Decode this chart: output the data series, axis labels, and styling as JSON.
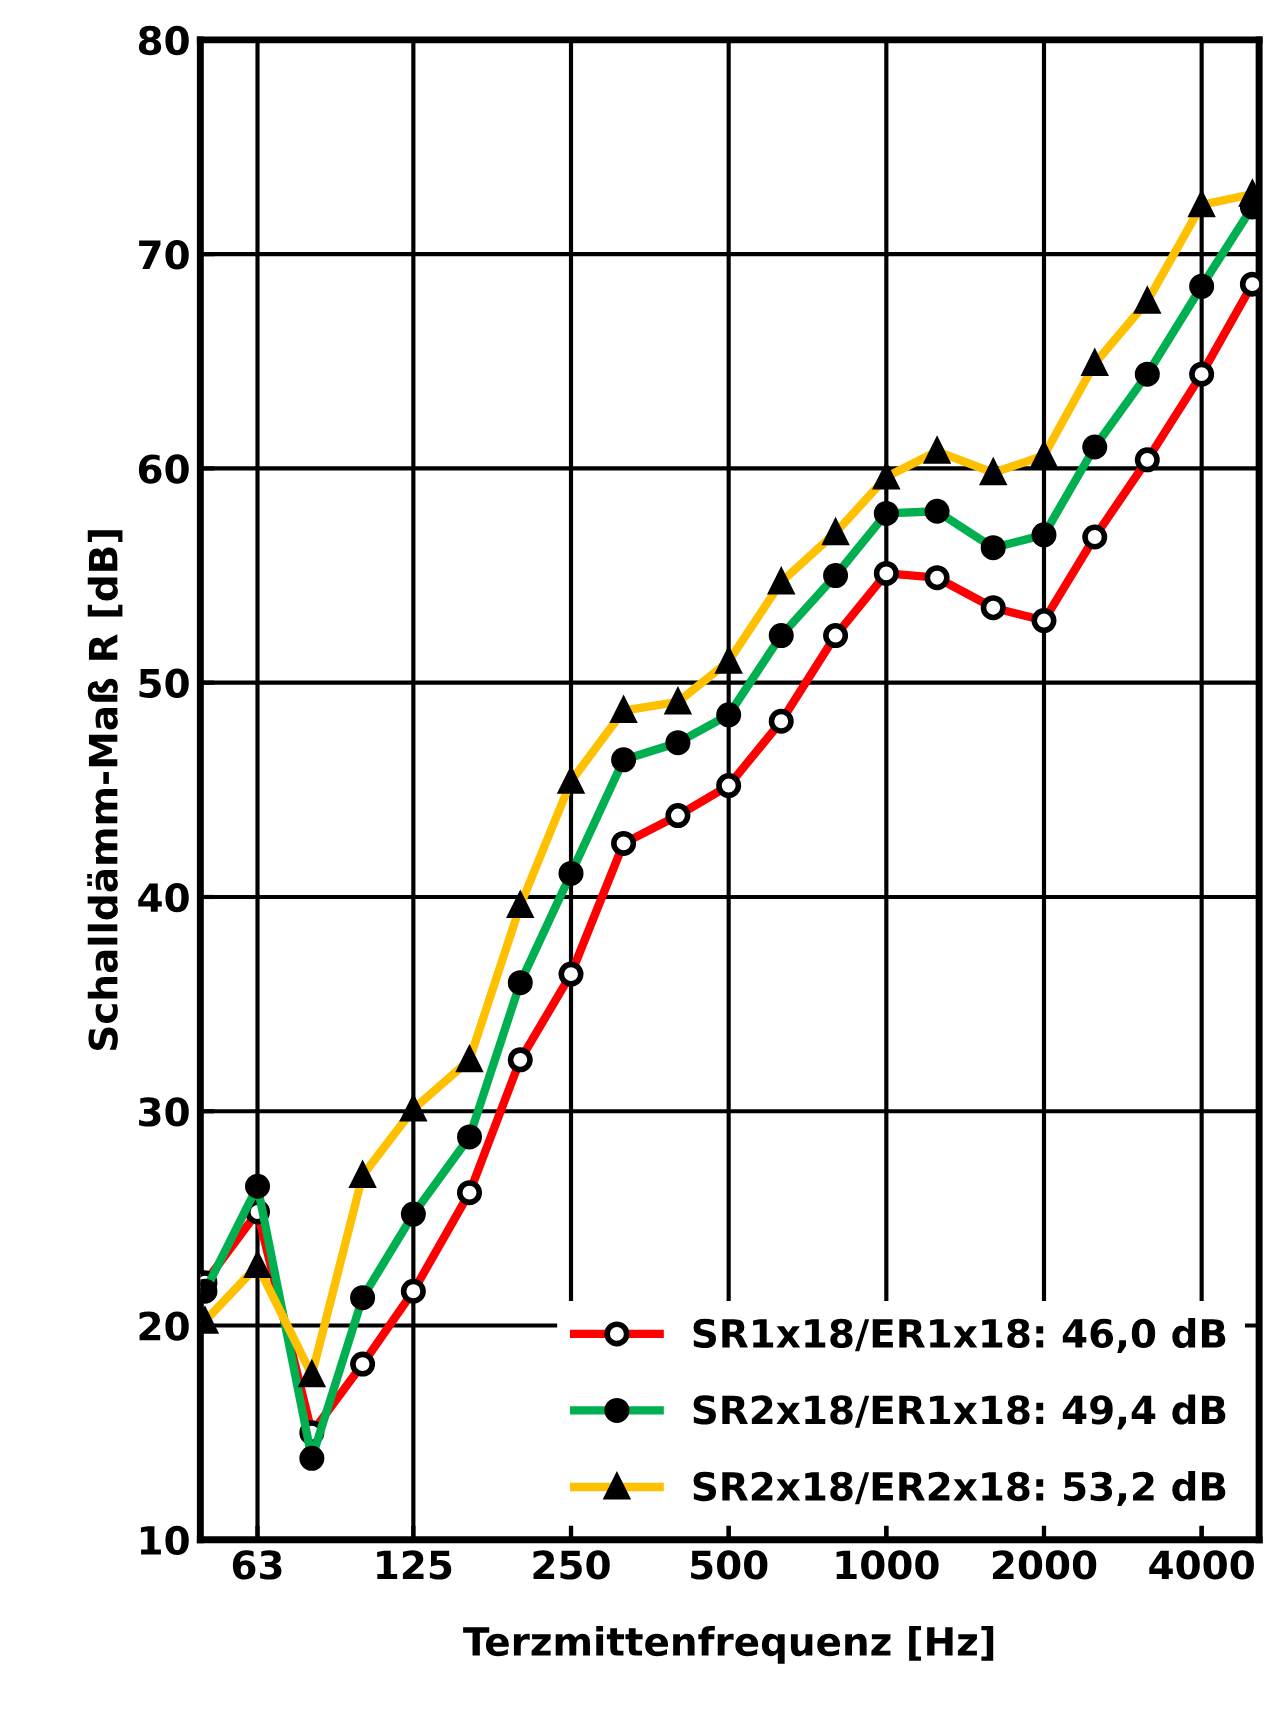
{
  "chart_data": {
    "type": "line",
    "xlabel": "Terzmittenfrequenz [Hz]",
    "ylabel": "Schalldämm-Maß R [dB]",
    "x": [
      50,
      63,
      80,
      100,
      125,
      160,
      200,
      250,
      315,
      400,
      500,
      630,
      800,
      1000,
      1250,
      1600,
      2000,
      2500,
      3150,
      4000,
      5000
    ],
    "log": "x",
    "xlim": [
      49,
      5150
    ],
    "xticks": [
      63,
      125,
      250,
      500,
      1000,
      2000,
      4000
    ],
    "ylim": [
      10,
      80
    ],
    "yticks": [
      10,
      20,
      30,
      40,
      50,
      60,
      70,
      80
    ],
    "grid": true,
    "legend": "bottom right",
    "series": [
      {
        "name": "SR1x18/ER1x18: 46,0 dB",
        "color": "#ff0000",
        "marker": "open circle",
        "values": [
          22.0,
          25.3,
          15.0,
          18.2,
          21.6,
          26.2,
          32.4,
          36.4,
          42.5,
          43.8,
          45.2,
          48.2,
          52.2,
          55.1,
          54.9,
          53.5,
          52.9,
          56.8,
          60.4,
          64.4,
          68.6
        ]
      },
      {
        "name": "SR2x18/ER1x18: 49,4 dB",
        "color": "#00b050",
        "marker": "circle",
        "values": [
          21.6,
          26.5,
          13.8,
          21.3,
          25.2,
          28.8,
          36.0,
          41.1,
          46.4,
          47.2,
          48.5,
          52.2,
          55.0,
          57.9,
          58.0,
          56.3,
          56.9,
          61.0,
          64.4,
          68.5,
          72.2
        ]
      },
      {
        "name": "SR2x18/ER2x18: 53,2 dB",
        "color": "#ffc000",
        "marker": "triangle",
        "values": [
          20.2,
          22.8,
          17.7,
          27.0,
          30.1,
          32.4,
          39.6,
          45.4,
          48.7,
          49.1,
          51.0,
          54.7,
          57.0,
          59.6,
          60.8,
          59.8,
          60.6,
          64.9,
          67.8,
          72.3,
          72.8
        ]
      }
    ]
  }
}
